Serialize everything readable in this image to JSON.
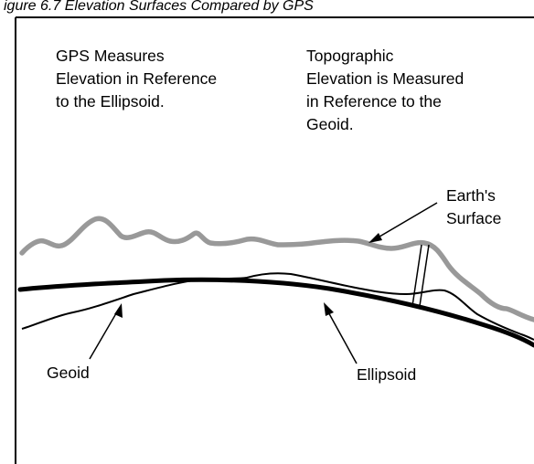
{
  "caption_fragment": "igure 6.7 Elevation Surfaces Compared by GPS",
  "labels": {
    "gps": [
      "GPS Measures",
      "Elevation in Reference",
      "to the Ellipsoid."
    ],
    "topographic": [
      "Topographic",
      "Elevation is Measured",
      "in Reference to the",
      "Geoid."
    ],
    "earth_surface": [
      "Earth's",
      "Surface"
    ],
    "geoid": "Geoid",
    "ellipsoid": "Ellipsoid"
  },
  "colors": {
    "earth_surface_line": "#999999",
    "ellipsoid_line": "#000000",
    "geoid_line": "#000000",
    "frame": "#000000",
    "text": "#000000"
  }
}
